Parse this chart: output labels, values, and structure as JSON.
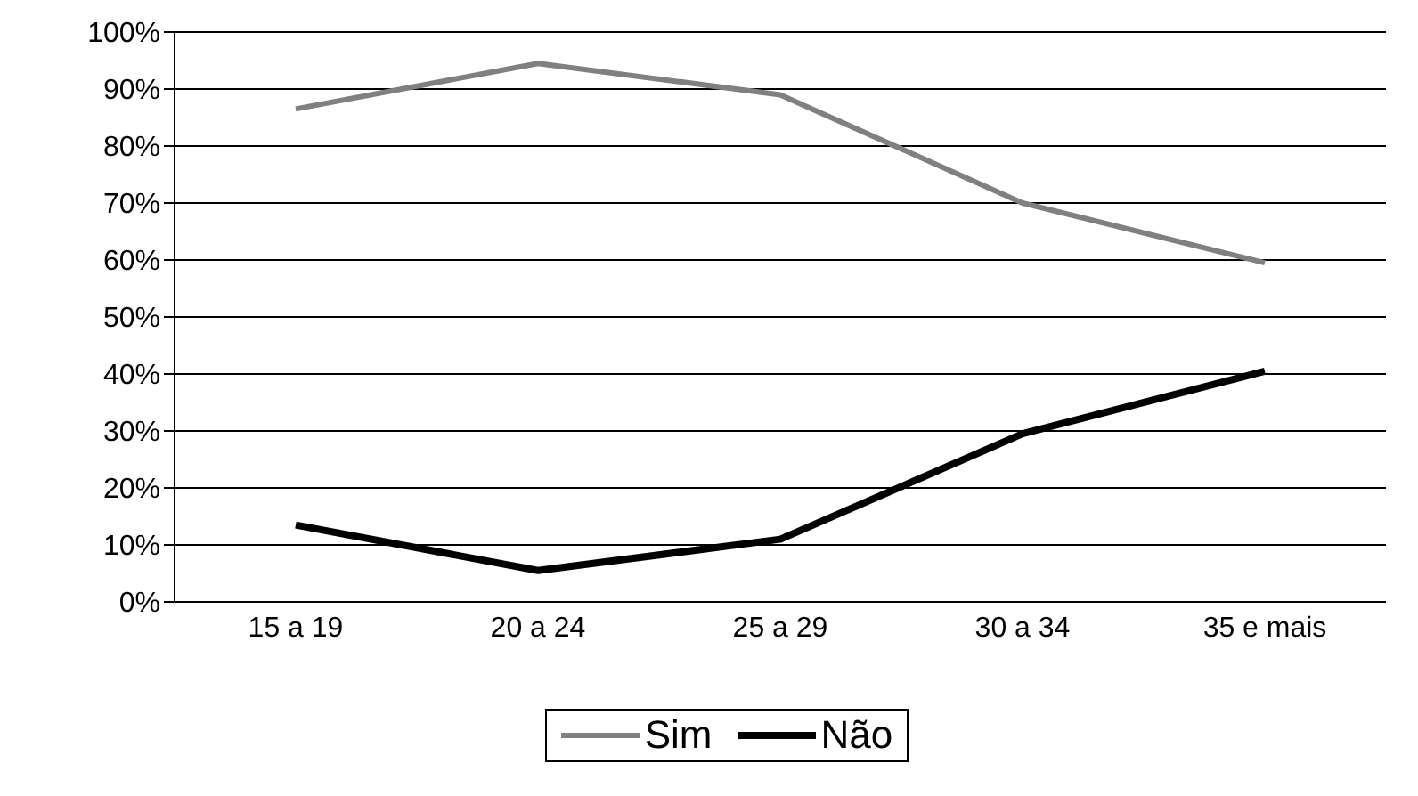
{
  "chart_data": {
    "type": "line",
    "categories": [
      "15 a 19",
      "20 a 24",
      "25 a 29",
      "30 a 34",
      "35 e mais"
    ],
    "series": [
      {
        "name": "Sim",
        "color": "#808080",
        "values": [
          86.5,
          94.5,
          89,
          70,
          59.5
        ]
      },
      {
        "name": "Não",
        "color": "#000000",
        "values": [
          13.5,
          5.5,
          11,
          29.5,
          40.5
        ]
      }
    ],
    "ylim": [
      0,
      100
    ],
    "yticks": [
      {
        "value": 0,
        "label": "0%"
      },
      {
        "value": 10,
        "label": "10%"
      },
      {
        "value": 20,
        "label": "20%"
      },
      {
        "value": 30,
        "label": "30%"
      },
      {
        "value": 40,
        "label": "40%"
      },
      {
        "value": 50,
        "label": "50%"
      },
      {
        "value": 60,
        "label": "60%"
      },
      {
        "value": 70,
        "label": "70%"
      },
      {
        "value": 80,
        "label": "80%"
      },
      {
        "value": 90,
        "label": "90%"
      },
      {
        "value": 100,
        "label": "100%"
      }
    ],
    "grid": "y",
    "legend": "bottom",
    "marker": "none",
    "line_style": "solid"
  }
}
